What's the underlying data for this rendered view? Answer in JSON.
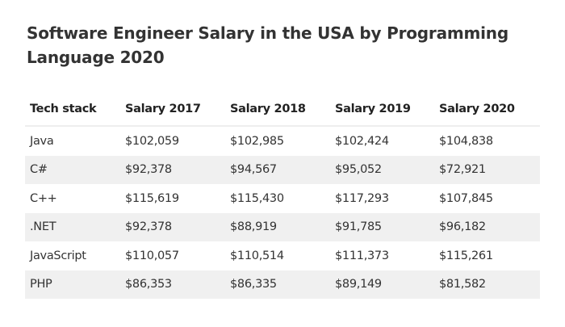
{
  "title": "Software Engineer Salary in the USA by Programming Language 2020",
  "table": {
    "headers": [
      "Tech stack",
      "Salary 2017",
      "Salary 2018",
      "Salary 2019",
      "Salary 2020"
    ],
    "rows": [
      [
        "Java",
        "$102,059",
        "$102,985",
        "$102,424",
        "$104,838"
      ],
      [
        "C#",
        "$92,378",
        "$94,567",
        "$95,052",
        "$72,921"
      ],
      [
        "C++",
        "$115,619",
        "$115,430",
        "$117,293",
        "$107,845"
      ],
      [
        ".NET",
        "$92,378",
        "$88,919",
        "$91,785",
        "$96,182"
      ],
      [
        "JavaScript",
        "$110,057",
        "$110,514",
        "$111,373",
        "$115,261"
      ],
      [
        "PHP",
        "$86,353",
        "$86,335",
        "$89,149",
        "$81,582"
      ]
    ]
  },
  "colors": {
    "stripe": "#f0f0f0",
    "text": "#333333"
  }
}
